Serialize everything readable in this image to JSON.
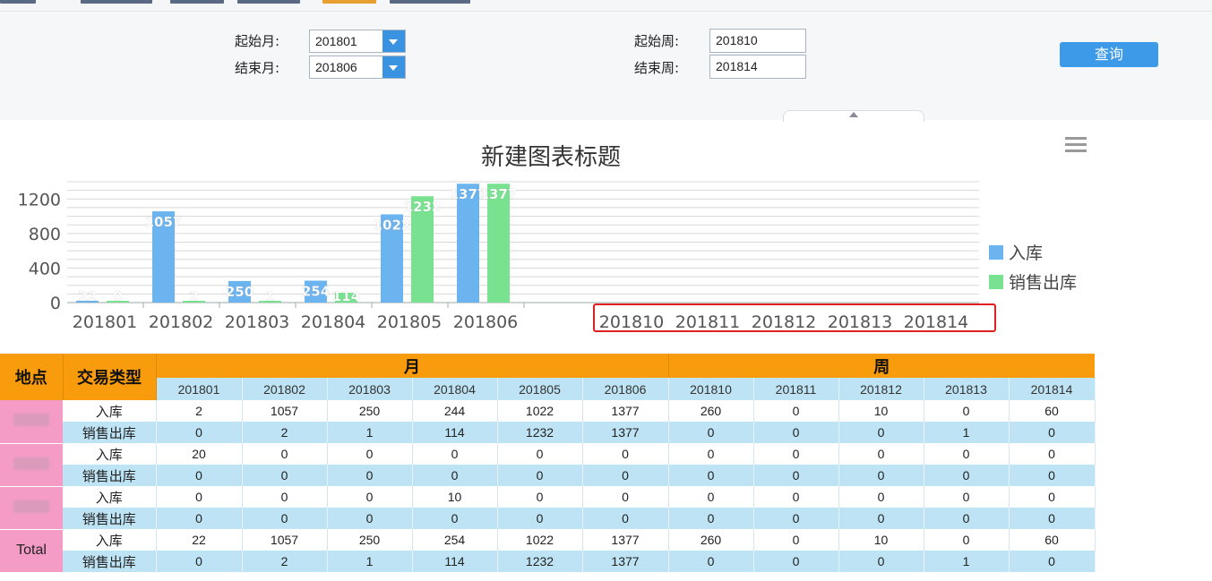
{
  "filters": {
    "start_month_label": "起始月:",
    "start_month_value": "201801",
    "end_month_label": "结束月:",
    "end_month_value": "201806",
    "start_week_label": "起始周:",
    "start_week_value": "201810",
    "end_week_label": "结束周:",
    "end_week_value": "201814",
    "query_label": "查询"
  },
  "chart_data": {
    "type": "bar",
    "title": "新建图表标题",
    "categories": [
      "201801",
      "201802",
      "201803",
      "201804",
      "201805",
      "201806",
      "201810",
      "201811",
      "201812",
      "201813",
      "201814"
    ],
    "series": [
      {
        "name": "入库",
        "color": "#6cb4ef",
        "values": [
          22,
          1057,
          250,
          254,
          1022,
          1377,
          null,
          null,
          null,
          null,
          null
        ],
        "labels": [
          "22",
          "1057",
          "250",
          "254",
          "1022",
          "1377",
          "",
          "",
          "",
          "",
          ""
        ]
      },
      {
        "name": "销售出库",
        "color": "#79e290",
        "values": [
          0,
          2,
          1,
          114,
          1232,
          1377,
          null,
          null,
          null,
          null,
          null
        ],
        "labels": [
          "0",
          "2",
          "1",
          "114",
          "1232",
          "1377",
          "",
          "",
          "",
          "",
          ""
        ]
      }
    ],
    "yticks": [
      0,
      400,
      800,
      1200
    ],
    "ylim": [
      0,
      1400
    ],
    "legend": "right",
    "grid": true
  },
  "table": {
    "col_location": "地点",
    "col_type": "交易类型",
    "group_month": "月",
    "group_week": "周",
    "periods": [
      "201801",
      "201802",
      "201803",
      "201804",
      "201805",
      "201806",
      "201810",
      "201811",
      "201812",
      "201813",
      "201814"
    ],
    "rows": [
      {
        "loc": "",
        "type": "入库",
        "values": [
          "2",
          "1057",
          "250",
          "244",
          "1022",
          "1377",
          "260",
          "0",
          "10",
          "0",
          "60"
        ]
      },
      {
        "loc": "",
        "type": "销售出库",
        "values": [
          "0",
          "2",
          "1",
          "114",
          "1232",
          "1377",
          "0",
          "0",
          "0",
          "1",
          "0"
        ]
      },
      {
        "loc": "",
        "type": "入库",
        "values": [
          "20",
          "0",
          "0",
          "0",
          "0",
          "0",
          "0",
          "0",
          "0",
          "0",
          "0"
        ]
      },
      {
        "loc": "",
        "type": "销售出库",
        "values": [
          "0",
          "0",
          "0",
          "0",
          "0",
          "0",
          "0",
          "0",
          "0",
          "0",
          "0"
        ]
      },
      {
        "loc": "",
        "type": "入库",
        "values": [
          "0",
          "0",
          "0",
          "10",
          "0",
          "0",
          "0",
          "0",
          "0",
          "0",
          "0"
        ]
      },
      {
        "loc": "",
        "type": "销售出库",
        "values": [
          "0",
          "0",
          "0",
          "0",
          "0",
          "0",
          "0",
          "0",
          "0",
          "0",
          "0"
        ]
      },
      {
        "loc": "Total",
        "type": "入库",
        "values": [
          "22",
          "1057",
          "250",
          "254",
          "1022",
          "1377",
          "260",
          "0",
          "10",
          "0",
          "60"
        ]
      },
      {
        "loc": "",
        "type": "销售出库",
        "values": [
          "0",
          "2",
          "1",
          "114",
          "1232",
          "1377",
          "0",
          "0",
          "0",
          "1",
          "0"
        ]
      }
    ]
  }
}
